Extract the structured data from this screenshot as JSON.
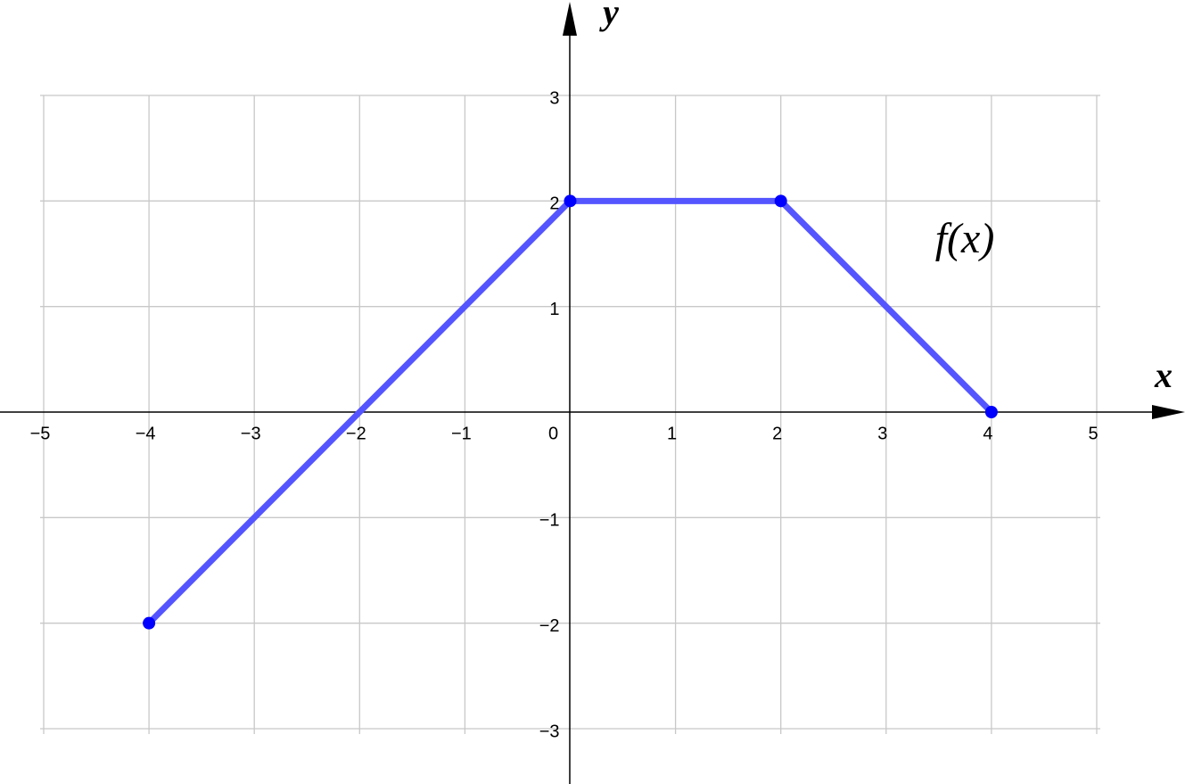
{
  "chart_data": {
    "type": "line",
    "x_label": "x",
    "y_label": "y",
    "annotation": "f(x)",
    "xlim": [
      -5,
      5
    ],
    "ylim": [
      -3,
      3
    ],
    "xticks": [
      {
        "value": -5,
        "label": "−5"
      },
      {
        "value": -4,
        "label": "−4"
      },
      {
        "value": -3,
        "label": "−3"
      },
      {
        "value": -2,
        "label": "−2"
      },
      {
        "value": -1,
        "label": "−1"
      },
      0,
      1,
      2,
      3,
      4,
      5
    ],
    "yticks": [
      {
        "value": -3,
        "label": "−3"
      },
      {
        "value": -2,
        "label": "−2"
      },
      {
        "value": -1,
        "label": "−1"
      },
      1,
      2,
      3
    ],
    "grid": true,
    "series": [
      {
        "color": "#5555ff",
        "point_color": "#0000ff",
        "x": [
          -4,
          0,
          2,
          4
        ],
        "y": [
          -2,
          2,
          2,
          0
        ]
      }
    ]
  }
}
